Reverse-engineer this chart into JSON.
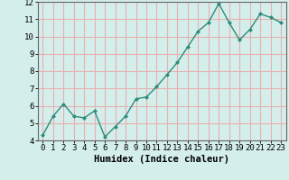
{
  "x": [
    0,
    1,
    2,
    3,
    4,
    5,
    6,
    7,
    8,
    9,
    10,
    11,
    12,
    13,
    14,
    15,
    16,
    17,
    18,
    19,
    20,
    21,
    22,
    23
  ],
  "y": [
    4.3,
    5.4,
    6.1,
    5.4,
    5.3,
    5.7,
    4.2,
    4.8,
    5.4,
    6.4,
    6.5,
    7.1,
    7.8,
    8.5,
    9.4,
    10.3,
    10.8,
    11.9,
    10.8,
    9.8,
    10.4,
    11.3,
    11.1,
    10.8
  ],
  "line_color": "#2e8b7a",
  "marker": "D",
  "marker_size": 2.0,
  "xlabel": "Humidex (Indice chaleur)",
  "ylim": [
    4,
    12
  ],
  "xlim": [
    -0.5,
    23.5
  ],
  "yticks": [
    4,
    5,
    6,
    7,
    8,
    9,
    10,
    11,
    12
  ],
  "xticks": [
    0,
    1,
    2,
    3,
    4,
    5,
    6,
    7,
    8,
    9,
    10,
    11,
    12,
    13,
    14,
    15,
    16,
    17,
    18,
    19,
    20,
    21,
    22,
    23
  ],
  "bg_color": "#d4eeeb",
  "grid_color": "#e8b0b0",
  "xlabel_fontsize": 7.5,
  "tick_fontsize": 6.5,
  "line_width": 1.0
}
